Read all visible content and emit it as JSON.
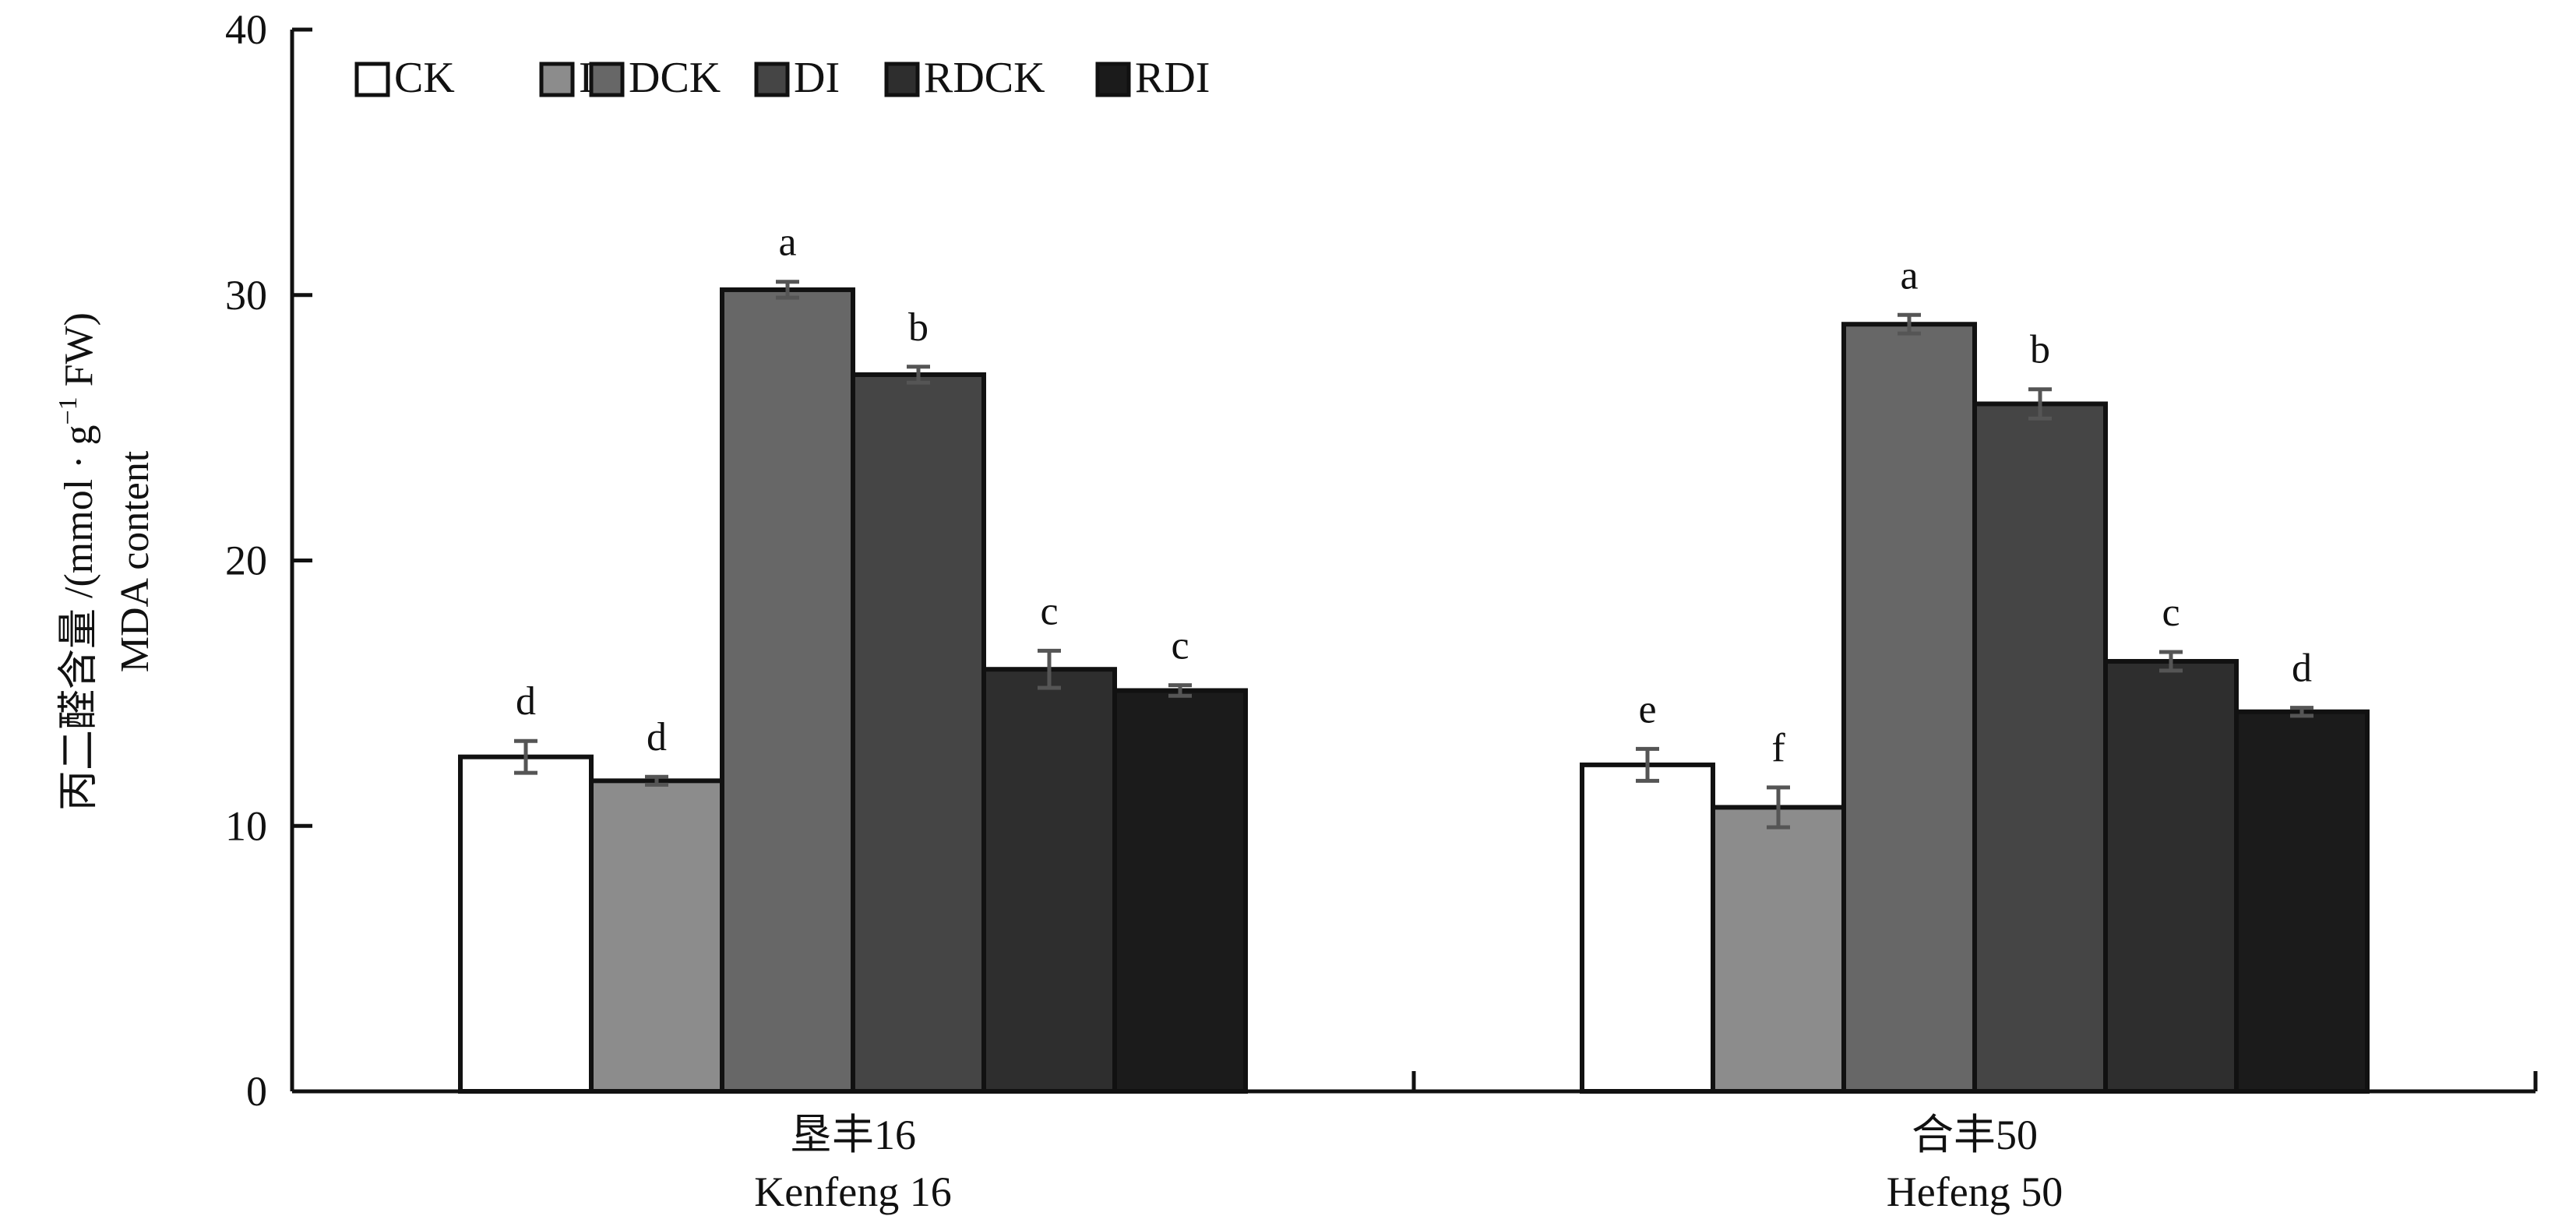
{
  "chart_data": {
    "type": "bar",
    "ylabel_cn": "丙二醛含量 /(mmol · g",
    "ylabel_sup": "−1",
    "ylabel_end": " FW)",
    "ylabel_en": "MDA content",
    "ylim": [
      0,
      40
    ],
    "yticks": [
      0,
      10,
      20,
      30,
      40
    ],
    "grid": false,
    "legend_position": "top-left",
    "categories": [
      {
        "cn": "垦丰16",
        "en": "Kenfeng 16"
      },
      {
        "cn": "合丰50",
        "en": "Hefeng 50"
      }
    ],
    "series": [
      {
        "name": "CK",
        "color": "#ffffff",
        "values": [
          12.6,
          12.3
        ],
        "errors": [
          0.6,
          0.6
        ],
        "letters": [
          "d",
          "e"
        ]
      },
      {
        "name": "I",
        "color": "#8c8c8c",
        "values": [
          11.7,
          10.7
        ],
        "errors": [
          0.15,
          0.75
        ],
        "letters": [
          "d",
          "f"
        ]
      },
      {
        "name": "DCK",
        "color": "#676767",
        "values": [
          30.2,
          28.9
        ],
        "errors": [
          0.3,
          0.35
        ],
        "letters": [
          "a",
          "a"
        ]
      },
      {
        "name": "DI",
        "color": "#454545",
        "values": [
          27.0,
          25.9
        ],
        "errors": [
          0.3,
          0.55
        ],
        "letters": [
          "b",
          "b"
        ]
      },
      {
        "name": "RDCK",
        "color": "#2e2e2e",
        "values": [
          15.9,
          16.2
        ],
        "errors": [
          0.7,
          0.35
        ],
        "letters": [
          "c",
          "c"
        ]
      },
      {
        "name": "RDI",
        "color": "#1b1b1b",
        "values": [
          15.1,
          14.3
        ],
        "errors": [
          0.2,
          0.15
        ],
        "letters": [
          "c",
          "d"
        ]
      }
    ]
  }
}
